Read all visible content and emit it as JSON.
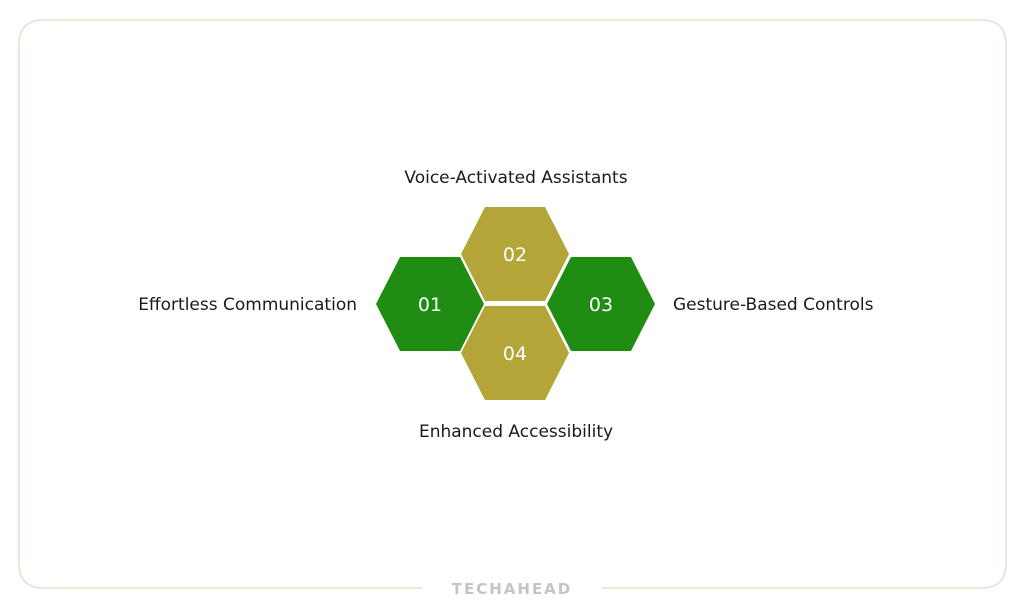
{
  "colors": {
    "green": "#1f8c13",
    "olive": "#b3a537",
    "frame": "#d9e6cf",
    "logo": "#c4c4c4"
  },
  "items": [
    {
      "number": "01",
      "label": "Effortless Communication",
      "color": "green"
    },
    {
      "number": "02",
      "label": "Voice-Activated Assistants",
      "color": "olive"
    },
    {
      "number": "03",
      "label": "Gesture-Based Controls",
      "color": "green"
    },
    {
      "number": "04",
      "label": "Enhanced Accessibility",
      "color": "olive"
    }
  ],
  "logo": "TECHAHEAD"
}
